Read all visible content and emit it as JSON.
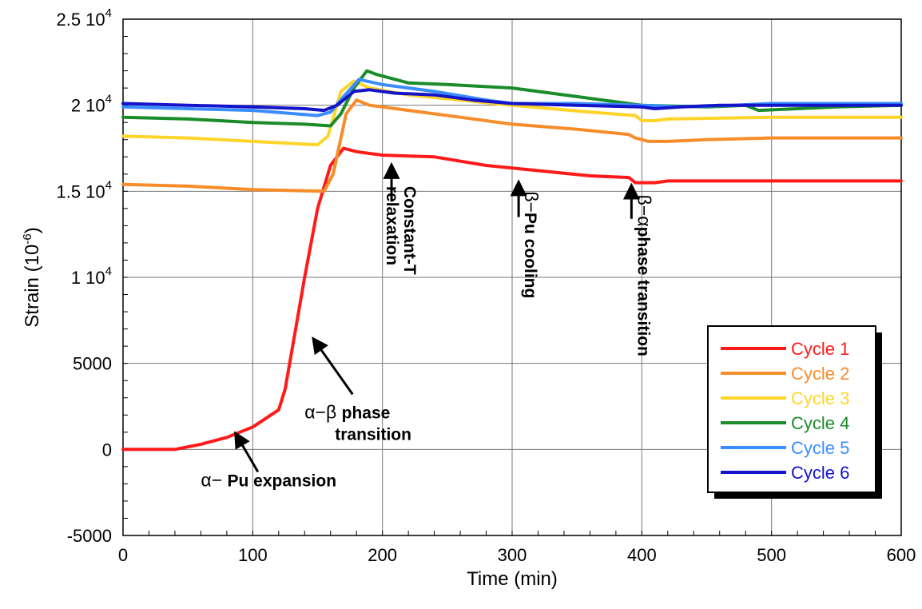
{
  "chart_data": {
    "type": "line",
    "xlabel": "Time (min)",
    "ylabel": "Strain (10",
    "ylabel_exponent": "-6",
    "ylabel_suffix": ")",
    "xlim": [
      0,
      600
    ],
    "ylim": [
      -5000,
      25000
    ],
    "grid": true,
    "legend_position": "bottom-right",
    "x_ticks": [
      {
        "value": 0,
        "label": "0"
      },
      {
        "value": 100,
        "label": "100"
      },
      {
        "value": 200,
        "label": "200"
      },
      {
        "value": 300,
        "label": "300"
      },
      {
        "value": 400,
        "label": "400"
      },
      {
        "value": 500,
        "label": "500"
      },
      {
        "value": 600,
        "label": "600"
      }
    ],
    "y_ticks": [
      {
        "value": -5000,
        "label": "-5000"
      },
      {
        "value": 0,
        "label": "0"
      },
      {
        "value": 5000,
        "label": "5000"
      },
      {
        "value": 10000,
        "label": "1 10",
        "exp": "4"
      },
      {
        "value": 15000,
        "label": "1.5 10",
        "exp": "4"
      },
      {
        "value": 20000,
        "label": "2 10",
        "exp": "4"
      },
      {
        "value": 25000,
        "label": "2.5 10",
        "exp": "4"
      }
    ],
    "series": [
      {
        "name": "Cycle 1",
        "color": "#ff1a1a",
        "points": [
          [
            0,
            0
          ],
          [
            40,
            0
          ],
          [
            60,
            300
          ],
          [
            80,
            700
          ],
          [
            100,
            1300
          ],
          [
            110,
            1800
          ],
          [
            120,
            2300
          ],
          [
            125,
            3500
          ],
          [
            140,
            10000
          ],
          [
            150,
            14000
          ],
          [
            160,
            16500
          ],
          [
            170,
            17500
          ],
          [
            180,
            17300
          ],
          [
            200,
            17100
          ],
          [
            240,
            17000
          ],
          [
            280,
            16500
          ],
          [
            320,
            16200
          ],
          [
            360,
            15900
          ],
          [
            390,
            15800
          ],
          [
            395,
            15500
          ],
          [
            410,
            15500
          ],
          [
            420,
            15600
          ],
          [
            500,
            15600
          ],
          [
            600,
            15600
          ]
        ]
      },
      {
        "name": "Cycle 2",
        "color": "#f78c2a",
        "points": [
          [
            0,
            15400
          ],
          [
            50,
            15300
          ],
          [
            100,
            15100
          ],
          [
            155,
            15000
          ],
          [
            162,
            16000
          ],
          [
            172,
            19500
          ],
          [
            180,
            20300
          ],
          [
            190,
            20000
          ],
          [
            220,
            19700
          ],
          [
            260,
            19300
          ],
          [
            300,
            18900
          ],
          [
            350,
            18600
          ],
          [
            390,
            18300
          ],
          [
            395,
            18100
          ],
          [
            405,
            17900
          ],
          [
            420,
            17900
          ],
          [
            450,
            18000
          ],
          [
            500,
            18100
          ],
          [
            600,
            18100
          ]
        ]
      },
      {
        "name": "Cycle 3",
        "color": "#ffd42a",
        "points": [
          [
            0,
            18200
          ],
          [
            50,
            18100
          ],
          [
            100,
            17900
          ],
          [
            150,
            17700
          ],
          [
            158,
            18200
          ],
          [
            168,
            20800
          ],
          [
            178,
            21400
          ],
          [
            190,
            21000
          ],
          [
            220,
            20600
          ],
          [
            260,
            20300
          ],
          [
            300,
            20000
          ],
          [
            360,
            19600
          ],
          [
            395,
            19400
          ],
          [
            400,
            19100
          ],
          [
            410,
            19100
          ],
          [
            420,
            19200
          ],
          [
            500,
            19300
          ],
          [
            600,
            19300
          ]
        ]
      },
      {
        "name": "Cycle 4",
        "color": "#1a8c2a",
        "points": [
          [
            0,
            19300
          ],
          [
            50,
            19200
          ],
          [
            100,
            19000
          ],
          [
            140,
            18900
          ],
          [
            160,
            18800
          ],
          [
            168,
            19500
          ],
          [
            178,
            21000
          ],
          [
            188,
            22000
          ],
          [
            195,
            21800
          ],
          [
            220,
            21300
          ],
          [
            250,
            21200
          ],
          [
            300,
            21000
          ],
          [
            350,
            20500
          ],
          [
            400,
            20000
          ],
          [
            450,
            19900
          ],
          [
            480,
            20000
          ],
          [
            490,
            19700
          ],
          [
            520,
            19800
          ],
          [
            550,
            19900
          ],
          [
            600,
            20000
          ]
        ]
      },
      {
        "name": "Cycle 5",
        "color": "#3a8cff",
        "points": [
          [
            0,
            19900
          ],
          [
            50,
            19800
          ],
          [
            100,
            19700
          ],
          [
            150,
            19400
          ],
          [
            160,
            19600
          ],
          [
            170,
            20500
          ],
          [
            182,
            21500
          ],
          [
            200,
            21200
          ],
          [
            240,
            20800
          ],
          [
            280,
            20300
          ],
          [
            300,
            20100
          ],
          [
            350,
            20100
          ],
          [
            400,
            20000
          ],
          [
            430,
            19900
          ],
          [
            470,
            20000
          ],
          [
            500,
            20100
          ],
          [
            600,
            20100
          ]
        ]
      },
      {
        "name": "Cycle 6",
        "color": "#1414c8",
        "points": [
          [
            0,
            20100
          ],
          [
            50,
            20000
          ],
          [
            100,
            19900
          ],
          [
            140,
            19800
          ],
          [
            155,
            19700
          ],
          [
            165,
            20000
          ],
          [
            178,
            20800
          ],
          [
            190,
            20900
          ],
          [
            210,
            20700
          ],
          [
            240,
            20600
          ],
          [
            270,
            20300
          ],
          [
            300,
            20100
          ],
          [
            350,
            20000
          ],
          [
            400,
            19900
          ],
          [
            410,
            19800
          ],
          [
            430,
            19900
          ],
          [
            460,
            20000
          ],
          [
            500,
            20000
          ],
          [
            600,
            20000
          ]
        ]
      }
    ],
    "annotations": [
      {
        "id": "alpha-pu-expansion",
        "greek": "α−",
        "text": "Pu expansion",
        "arrow_from": [
          104,
          -1300
        ],
        "arrow_to": [
          87,
          900
        ],
        "label_at": [
          60,
          -2150
        ],
        "anchor": "start"
      },
      {
        "id": "alpha-beta-transition",
        "greek": "α−β",
        "text": "phase",
        "text2": "transition",
        "arrow_from": [
          177,
          3200
        ],
        "arrow_to": [
          147,
          6400
        ],
        "label_at": [
          140,
          1800
        ],
        "anchor": "start"
      },
      {
        "id": "constant-t",
        "text": "Constant-T",
        "text2": "relaxation",
        "arrow_from": [
          207,
          14400
        ],
        "arrow_to": [
          207,
          16500
        ],
        "rotate": 90,
        "label_at": [
          212,
          15300
        ]
      },
      {
        "id": "beta-pu-cooling",
        "greek": "β−",
        "text": "Pu cooling",
        "arrow_from": [
          305,
          13500
        ],
        "arrow_to": [
          305,
          15500
        ],
        "rotate": 90,
        "label_at": [
          305,
          15000
        ]
      },
      {
        "id": "beta-alpha-transition",
        "greek": "β−α",
        "text": "phase transition",
        "arrow_from": [
          392,
          13400
        ],
        "arrow_to": [
          392,
          15300
        ],
        "rotate": 90,
        "label_at": [
          392,
          14800
        ]
      }
    ]
  }
}
